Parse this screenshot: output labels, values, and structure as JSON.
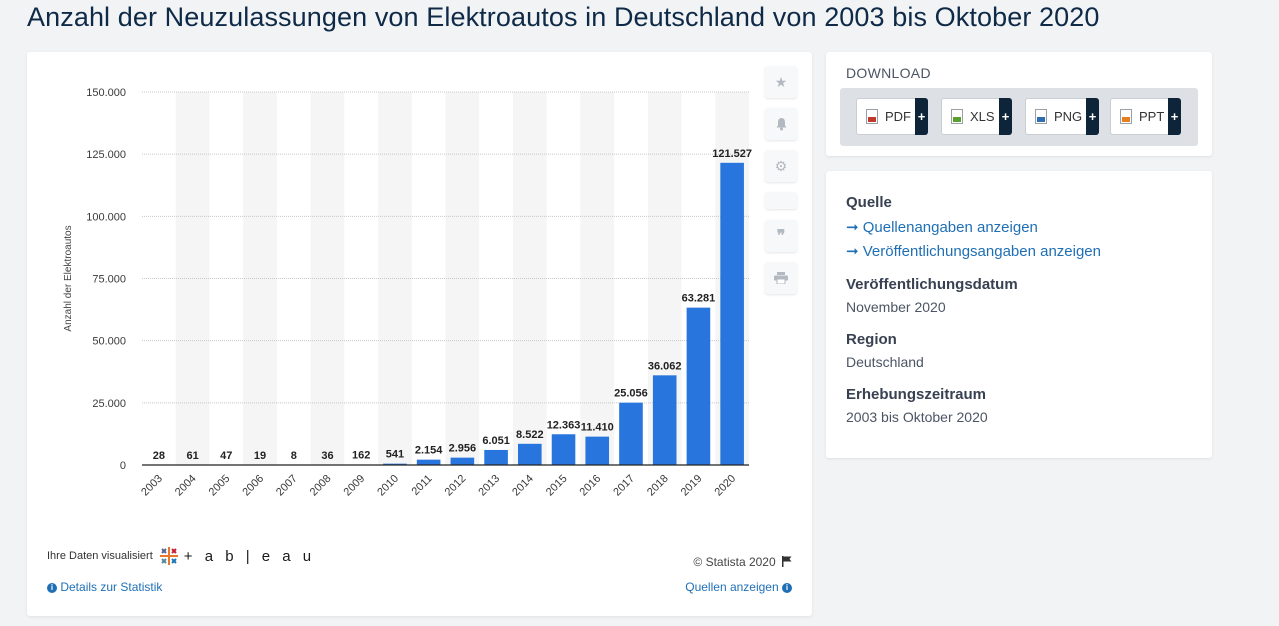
{
  "page": {
    "title": "Anzahl der Neuzulassungen von Elektroautos in Deutschland von 2003 bis Oktober 2020"
  },
  "chart_data": {
    "type": "bar",
    "title": "Anzahl der Neuzulassungen von Elektroautos in Deutschland von 2003 bis Oktober 2020",
    "xlabel": "",
    "ylabel": "Anzahl der Elektroautos",
    "ylim": [
      0,
      150000
    ],
    "yticks": [
      0,
      25000,
      50000,
      75000,
      100000,
      125000,
      150000
    ],
    "ytick_labels": [
      "0",
      "25.000",
      "50.000",
      "75.000",
      "100.000",
      "125.000",
      "150.000"
    ],
    "grid": true,
    "bar_color": "#2876dd",
    "categories": [
      "2003",
      "2004",
      "2005",
      "2006",
      "2007",
      "2008",
      "2009",
      "2010",
      "2011",
      "2012",
      "2013",
      "2014",
      "2015",
      "2016",
      "2017",
      "2018",
      "2019",
      "2020"
    ],
    "values": [
      28,
      61,
      47,
      19,
      8,
      36,
      162,
      541,
      2154,
      2956,
      6051,
      8522,
      12363,
      11410,
      25056,
      36062,
      63281,
      121527
    ],
    "value_labels": [
      "28",
      "61",
      "47",
      "19",
      "8",
      "36",
      "162",
      "541",
      "2.154",
      "2.956",
      "6.051",
      "8.522",
      "12.363",
      "11.410",
      "25.056",
      "36.062",
      "63.281",
      "121.527"
    ]
  },
  "chart_footer": {
    "viz_credit": "Ihre Daten visualisiert",
    "tableau_word": "+ a b | e a u",
    "details_link": "Details zur Statistik",
    "copyright": "© Statista 2020",
    "sources_link": "Quellen anzeigen"
  },
  "download": {
    "heading": "DOWNLOAD",
    "buttons": [
      {
        "label": "PDF",
        "icon": "pdf-file-icon",
        "color": "#c0392b"
      },
      {
        "label": "XLS",
        "icon": "xls-file-icon",
        "color": "#5aa02c"
      },
      {
        "label": "PNG",
        "icon": "png-file-icon",
        "color": "#2f6db3"
      },
      {
        "label": "PPT",
        "icon": "ppt-file-icon",
        "color": "#e67e22"
      }
    ],
    "plus": "+"
  },
  "info": {
    "source_label": "Quelle",
    "source_link": "➞ Quellenangaben anzeigen",
    "publication_link": "➞ Veröffentlichungsangaben anzeigen",
    "date_label": "Veröffentlichungsdatum",
    "date_value": "November 2020",
    "region_label": "Region",
    "region_value": "Deutschland",
    "period_label": "Erhebungszeitraum",
    "period_value": "2003 bis Oktober 2020"
  },
  "tools": [
    "star-icon",
    "bell-icon",
    "gear-icon",
    "blank-tool",
    "quote-icon",
    "print-icon"
  ]
}
